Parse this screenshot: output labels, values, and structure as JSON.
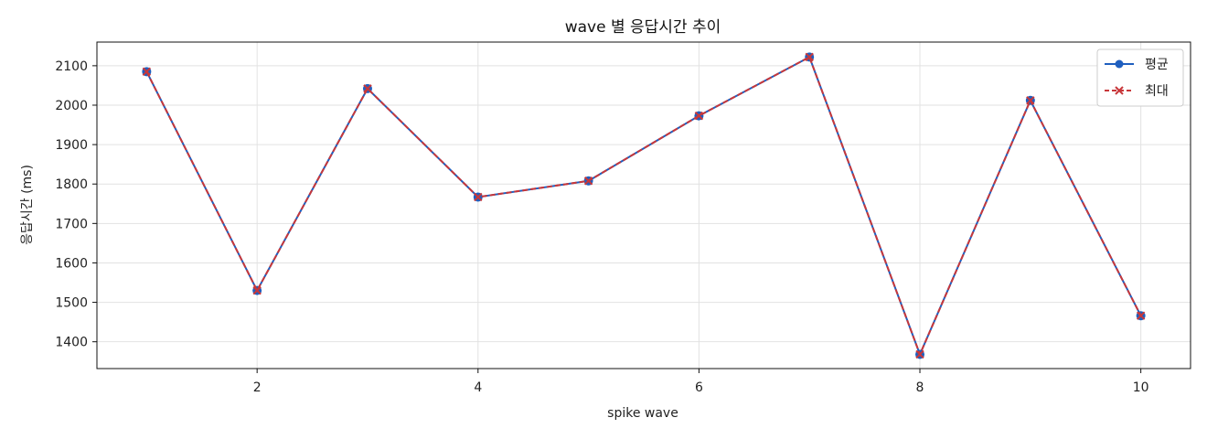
{
  "chart_data": {
    "type": "line",
    "title": "wave 별 응답시간 추이",
    "xlabel": "spike wave",
    "ylabel": "응답시간 (ms)",
    "x": [
      1,
      2,
      3,
      4,
      5,
      6,
      7,
      8,
      9,
      10
    ],
    "xlim": [
      0.55,
      10.45
    ],
    "ylim": [
      1332,
      2160
    ],
    "xticks": [
      2,
      4,
      6,
      8,
      10
    ],
    "yticks": [
      1400,
      1500,
      1600,
      1700,
      1800,
      1900,
      2000,
      2100
    ],
    "grid": true,
    "legend_position": "top-right",
    "series": [
      {
        "name": "평균",
        "marker": "circle",
        "line_style": "solid",
        "color": "#1f5fbf",
        "values": [
          2085,
          1530,
          2042,
          1767,
          1808,
          1973,
          2122,
          1368,
          2012,
          1466
        ]
      },
      {
        "name": "최대",
        "marker": "x",
        "line_style": "dashed",
        "color": "#c8373a",
        "values": [
          2085,
          1530,
          2042,
          1767,
          1808,
          1973,
          2122,
          1368,
          2012,
          1466
        ]
      }
    ]
  }
}
